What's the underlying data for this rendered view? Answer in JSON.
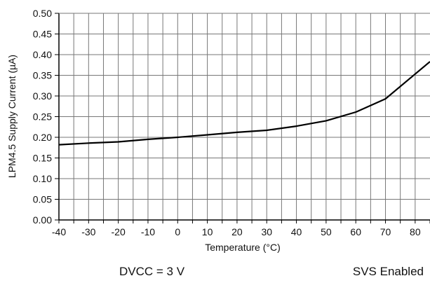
{
  "chart_data": {
    "type": "line",
    "xlabel": "Temperature (°C)",
    "ylabel": "LPM4.5 Supply Current (µA)",
    "xlim": [
      -40,
      85
    ],
    "ylim": [
      0,
      0.5
    ],
    "x_ticks": [
      -40,
      -30,
      -20,
      -10,
      0,
      10,
      20,
      30,
      40,
      50,
      60,
      70,
      80
    ],
    "x_tick_labels": [
      "-40",
      "-30",
      "-20",
      "-10",
      "0",
      "10",
      "20",
      "30",
      "40",
      "50",
      "60",
      "70",
      "80"
    ],
    "y_ticks": [
      0,
      0.05,
      0.1,
      0.15,
      0.2,
      0.25,
      0.3,
      0.35,
      0.4,
      0.45,
      0.5
    ],
    "y_tick_labels": [
      "0.00",
      "0.05",
      "0.10",
      "0.15",
      "0.20",
      "0.25",
      "0.30",
      "0.35",
      "0.40",
      "0.45",
      "0.50"
    ],
    "grid": "vertical every 5 °C, horizontal every 0.05",
    "series": [
      {
        "x": [
          -40,
          -30,
          -20,
          -10,
          0,
          10,
          20,
          30,
          40,
          50,
          60,
          70,
          85
        ],
        "y": [
          0.182,
          0.186,
          0.189,
          0.195,
          0.2,
          0.206,
          0.212,
          0.217,
          0.227,
          0.24,
          0.261,
          0.293,
          0.383
        ]
      }
    ]
  },
  "notes": {
    "left": "DVCC = 3 V",
    "right": "SVS Enabled"
  },
  "colors": {
    "line": "#000000",
    "grid": "#777777",
    "axis": "#000000"
  }
}
